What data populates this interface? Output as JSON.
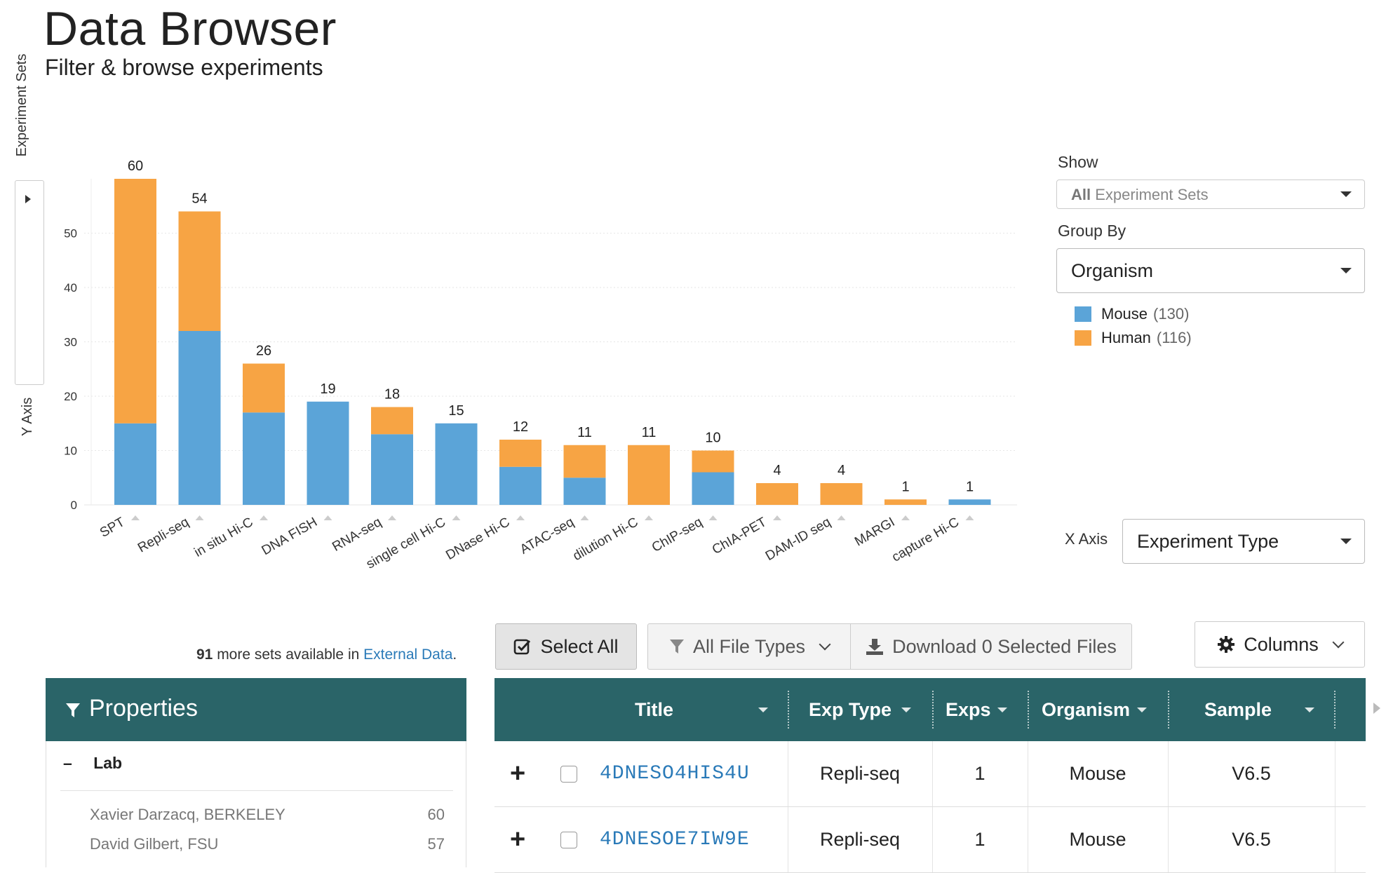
{
  "header": {
    "title": "Data Browser",
    "subtitle": "Filter & browse experiments"
  },
  "yaxis": {
    "toggle_label": "Experiment Sets",
    "title": "Y Axis"
  },
  "controls": {
    "show_label": "Show",
    "show_value_bold": "All",
    "show_value_rest": " Experiment Sets",
    "groupby_label": "Group By",
    "groupby_value": "Organism",
    "xaxis_label": "X Axis",
    "xaxis_value": "Experiment Type"
  },
  "legend": [
    {
      "label": "Mouse",
      "count": "(130)",
      "color": "#5ba4d8"
    },
    {
      "label": "Human",
      "count": "(116)",
      "color": "#f7a444"
    }
  ],
  "chart_data": {
    "type": "bar",
    "stacked": true,
    "categories": [
      "SPT",
      "Repli-seq",
      "in situ Hi-C",
      "DNA FISH",
      "RNA-seq",
      "single cell Hi-C",
      "DNase Hi-C",
      "ATAC-seq",
      "dilution Hi-C",
      "ChIP-seq",
      "ChIA-PET",
      "DAM-ID seq",
      "MARGI",
      "capture Hi-C"
    ],
    "series": [
      {
        "name": "Mouse",
        "color": "#5ba4d8",
        "values": [
          15,
          32,
          17,
          19,
          13,
          15,
          7,
          5,
          0,
          6,
          0,
          0,
          0,
          1
        ]
      },
      {
        "name": "Human",
        "color": "#f7a444",
        "values": [
          45,
          22,
          9,
          0,
          5,
          0,
          5,
          6,
          11,
          4,
          4,
          4,
          1,
          0
        ]
      }
    ],
    "totals": [
      60,
      54,
      26,
      19,
      18,
      15,
      12,
      11,
      11,
      10,
      4,
      4,
      1,
      1
    ],
    "yticks": [
      0,
      10,
      20,
      30,
      40,
      50
    ],
    "ylim": [
      0,
      60
    ],
    "grid": true
  },
  "actions": {
    "external_count": "91",
    "external_text": " more sets available in ",
    "external_link": "External Data",
    "external_period": ".",
    "select_all": "Select All",
    "file_types": "All File Types",
    "download_prefix": "Download ",
    "download_count": "0",
    "download_suffix": " Selected Files",
    "columns": "Columns"
  },
  "properties": {
    "title": "Properties",
    "lab_label": "Lab",
    "lab_toggle": "–",
    "facets": [
      {
        "label": "Xavier Darzacq, BERKELEY",
        "count": "60"
      },
      {
        "label": "David Gilbert, FSU",
        "count": "57"
      }
    ]
  },
  "table": {
    "columns": [
      "Title",
      "Exp Type",
      "Exps",
      "Organism",
      "Sample"
    ],
    "rows": [
      {
        "expand": "+",
        "title": "4DNESO4HIS4U",
        "exp_type": "Repli-seq",
        "exps": "1",
        "organism": "Mouse",
        "sample": "V6.5"
      },
      {
        "expand": "+",
        "title": "4DNESOE7IW9E",
        "exp_type": "Repli-seq",
        "exps": "1",
        "organism": "Mouse",
        "sample": "V6.5"
      }
    ]
  }
}
